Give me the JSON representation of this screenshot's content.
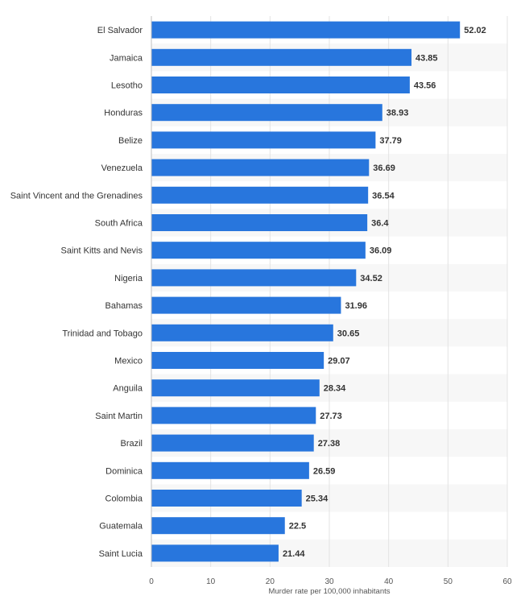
{
  "chart_data": {
    "type": "bar",
    "orientation": "horizontal",
    "categories": [
      "El Salvador",
      "Jamaica",
      "Lesotho",
      "Honduras",
      "Belize",
      "Venezuela",
      "Saint Vincent and the Grenadines",
      "South Africa",
      "Saint Kitts and Nevis",
      "Nigeria",
      "Bahamas",
      "Trinidad and Tobago",
      "Mexico",
      "Anguila",
      "Saint Martin",
      "Brazil",
      "Dominica",
      "Colombia",
      "Guatemala",
      "Saint Lucia"
    ],
    "values": [
      52.02,
      43.85,
      43.56,
      38.93,
      37.79,
      36.69,
      36.54,
      36.4,
      36.09,
      34.52,
      31.96,
      30.65,
      29.07,
      28.34,
      27.73,
      27.38,
      26.59,
      25.34,
      22.5,
      21.44
    ],
    "value_labels": [
      "52.02",
      "43.85",
      "43.56",
      "38.93",
      "37.79",
      "36.69",
      "36.54",
      "36.4",
      "36.09",
      "34.52",
      "31.96",
      "30.65",
      "29.07",
      "28.34",
      "27.73",
      "27.38",
      "26.59",
      "25.34",
      "22.5",
      "21.44"
    ],
    "xlabel": "Murder rate per 100,000 inhabitants",
    "ylabel": "",
    "xlim": [
      0,
      60
    ],
    "xticks": [
      0,
      10,
      20,
      30,
      40,
      50,
      60
    ],
    "grid": true,
    "bar_color": "#2876dd",
    "stripe_color": "#f7f7f7"
  }
}
